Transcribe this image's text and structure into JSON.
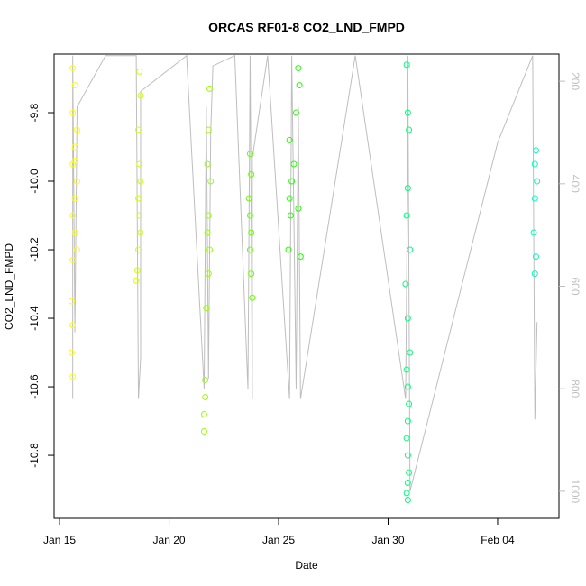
{
  "chart_data": {
    "type": "scatter",
    "title": "ORCAS RF01-8 CO2_LND_FMPD",
    "x_label": "Date",
    "y_label": "CO2_LND_FMPD",
    "xlim": [
      14.75,
      37.8
    ],
    "xticks": [
      {
        "value": 15,
        "label": "Jan 15"
      },
      {
        "value": 20,
        "label": "Jan 20"
      },
      {
        "value": 25,
        "label": "Jan 25"
      },
      {
        "value": 30,
        "label": "Jan 30"
      },
      {
        "value": 35,
        "label": "Feb 04"
      }
    ],
    "ylim": [
      -10.984,
      -9.629
    ],
    "yticks": [
      -10.8,
      -10.6,
      -10.4,
      -10.2,
      {
        "value": -10,
        "label": "-10.0"
      },
      -9.8
    ],
    "y2lim": [
      1053,
      147
    ],
    "y2ticks": [
      200,
      400,
      600,
      800,
      1000
    ],
    "series": [
      {
        "color": "#ffff00",
        "mode": "points",
        "x": [
          15.6,
          15.7,
          15.6,
          15.8,
          15.7,
          15.6,
          15.8,
          15.7,
          15.6,
          15.7,
          15.8,
          15.6,
          15.7,
          15.55,
          15.6,
          15.55,
          15.6
        ],
        "values": [
          -9.67,
          -9.72,
          -9.8,
          -9.85,
          -9.9,
          -9.95,
          -10.0,
          -10.05,
          -10.1,
          -10.15,
          -10.2,
          -10.23,
          -9.94,
          -10.35,
          -10.42,
          -10.5,
          -10.57
        ]
      },
      {
        "color": "#d4ff00",
        "mode": "points",
        "x": [
          18.65,
          18.7,
          18.6,
          18.65,
          18.7,
          18.6,
          18.65,
          18.7,
          18.6,
          18.55,
          18.5
        ],
        "values": [
          -9.68,
          -9.75,
          -9.85,
          -9.95,
          -10.0,
          -10.05,
          -10.1,
          -10.15,
          -10.2,
          -10.26,
          -10.29
        ]
      },
      {
        "color": "#99ff00",
        "mode": "points",
        "x": [
          21.85,
          21.8,
          21.75,
          21.9,
          21.8,
          21.75,
          21.85,
          21.8,
          21.7,
          21.65,
          21.65,
          21.6,
          21.6
        ],
        "values": [
          -9.73,
          -9.85,
          -9.95,
          -10.0,
          -10.1,
          -10.15,
          -10.2,
          -10.27,
          -10.37,
          -10.58,
          -10.63,
          -10.68,
          -10.73
        ]
      },
      {
        "color": "#66ff00",
        "mode": "points",
        "x": [
          23.7,
          23.75,
          23.65,
          23.7,
          23.75,
          23.7,
          23.75,
          23.8
        ],
        "values": [
          -9.92,
          -9.98,
          -10.05,
          -10.1,
          -10.15,
          -10.2,
          -10.27,
          -10.34
        ]
      },
      {
        "color": "#22ff00",
        "mode": "points",
        "x": [
          25.9,
          25.95,
          25.8,
          25.5,
          25.7,
          25.6,
          25.5,
          25.55,
          25.45,
          25.9,
          26.0
        ],
        "values": [
          -9.67,
          -9.72,
          -9.8,
          -9.88,
          -9.95,
          -10.0,
          -10.05,
          -10.1,
          -10.2,
          -10.08,
          -10.22
        ]
      },
      {
        "color": "#00ff7a",
        "mode": "points",
        "x": [
          30.85,
          30.9,
          30.95,
          30.9,
          30.85,
          31.0,
          30.8,
          30.9,
          31.0,
          30.85,
          30.9,
          30.95,
          30.9,
          30.85,
          30.9,
          30.95,
          30.9,
          30.85,
          30.9
        ],
        "values": [
          -9.66,
          -9.8,
          -9.85,
          -10.02,
          -10.1,
          -10.2,
          -10.3,
          -10.4,
          -10.5,
          -10.55,
          -10.6,
          -10.65,
          -10.7,
          -10.75,
          -10.8,
          -10.85,
          -10.88,
          -10.91,
          -10.93
        ]
      },
      {
        "color": "#00ffb8",
        "mode": "points",
        "x": [
          36.75,
          36.7,
          36.8,
          36.7,
          36.65,
          36.75,
          36.7
        ],
        "values": [
          -9.91,
          -9.95,
          -10.0,
          -10.05,
          -10.15,
          -10.22,
          -10.27
        ]
      },
      {
        "color": "#bebebe",
        "mode": "lines",
        "axis": "y2",
        "x": [
          15.6,
          15.6,
          15.7,
          15.8,
          17.1,
          18.5,
          18.6,
          18.7,
          18.7,
          20.8,
          21.6,
          21.7,
          21.8,
          21.9,
          22.0,
          23.0,
          23.6,
          23.7,
          23.8,
          23.8,
          24.5,
          25.5,
          25.6,
          25.8,
          25.9,
          26.0,
          28.5,
          30.8,
          30.9,
          30.9,
          31.0,
          35.0,
          36.6,
          36.7,
          36.8
        ],
        "values": [
          820,
          150,
          690,
          250,
          150,
          150,
          820,
          740,
          220,
          150,
          800,
          250,
          780,
          300,
          170,
          150,
          800,
          150,
          820,
          350,
          150,
          820,
          150,
          800,
          250,
          820,
          150,
          820,
          330,
          150,
          1000,
          320,
          150,
          860,
          670
        ]
      }
    ]
  }
}
